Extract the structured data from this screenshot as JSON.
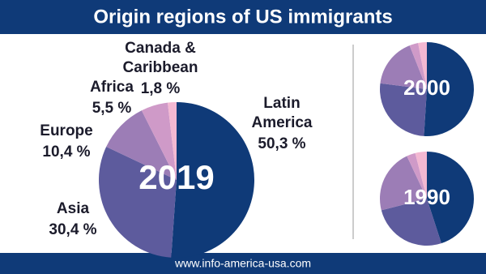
{
  "header": {
    "title": "Origin regions of US immigrants"
  },
  "footer": {
    "url": "www.info-america-usa.com"
  },
  "chart_data": [
    {
      "type": "pie",
      "title": "2019",
      "categories": [
        "Latin America",
        "Asia",
        "Europe",
        "Africa",
        "Canada & Caribbean"
      ],
      "values": [
        50.3,
        30.4,
        10.4,
        5.5,
        1.8
      ],
      "value_labels": [
        "50,3 %",
        "30,4 %",
        "10,4 %",
        "5,5 %",
        "1,8 %"
      ],
      "colors": [
        "#0f3a78",
        "#5d5b9d",
        "#9c7db6",
        "#cf9ac8",
        "#f3b8d2"
      ]
    },
    {
      "type": "pie",
      "title": "2000",
      "values": [
        51,
        26,
        17,
        3,
        3
      ],
      "colors": [
        "#0f3a78",
        "#5d5b9d",
        "#9c7db6",
        "#cf9ac8",
        "#f3b8d2"
      ]
    },
    {
      "type": "pie",
      "title": "1990",
      "values": [
        45,
        26,
        22,
        3,
        4
      ],
      "colors": [
        "#0f3a78",
        "#5d5b9d",
        "#9c7db6",
        "#cf9ac8",
        "#f3b8d2"
      ]
    }
  ]
}
